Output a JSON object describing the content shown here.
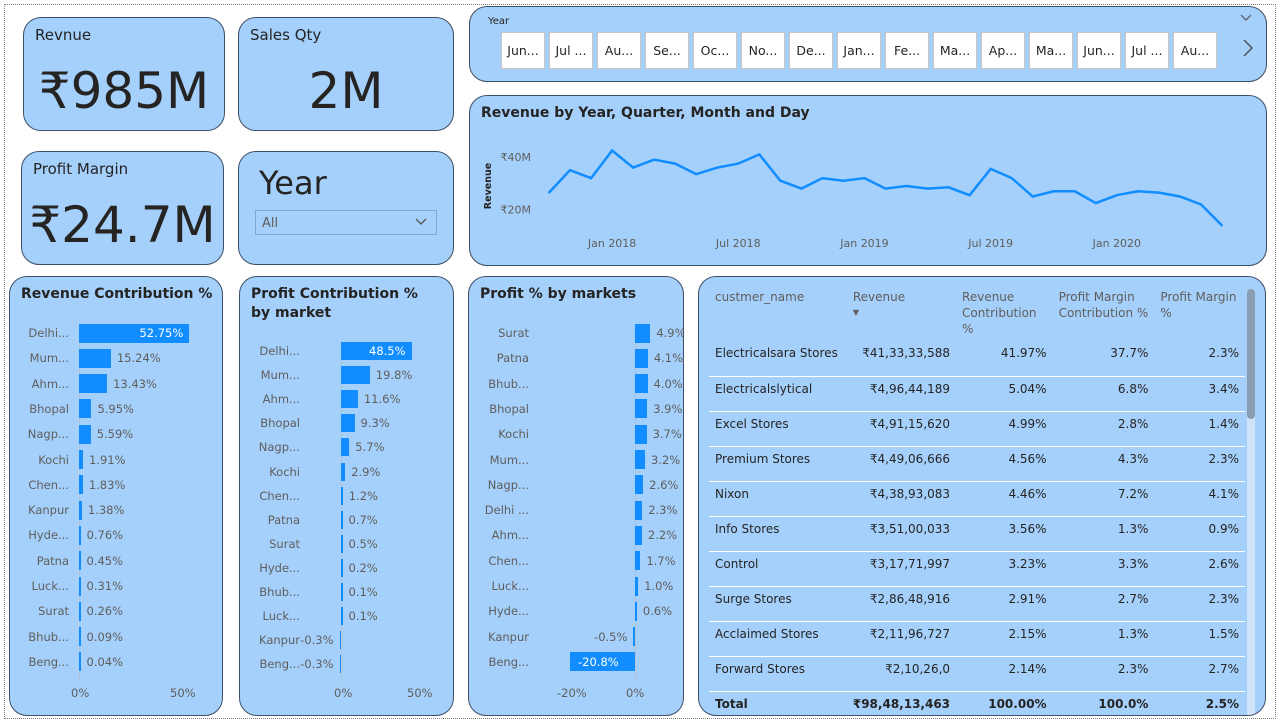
{
  "kpis": {
    "revenue": {
      "label": "Revnue",
      "value": "₹985M"
    },
    "sales_qty": {
      "label": "Sales Qty",
      "value": "2M"
    },
    "profit_margin": {
      "label": "Profit Margin",
      "value": "₹24.7M"
    }
  },
  "year_filter": {
    "title": "Year",
    "selected": "All"
  },
  "year_slicer": {
    "label": "Year",
    "tiles": [
      "Jun...",
      "Jul ...",
      "Au...",
      "Se...",
      "Oc...",
      "No...",
      "De...",
      "Jan...",
      "Fe...",
      "Ma...",
      "Ap...",
      "Ma...",
      "Jun...",
      "Jul ...",
      "Au..."
    ]
  },
  "colors": {
    "card": "#a4d0fb",
    "bar": "#118dff",
    "border": "#3d4f66"
  },
  "icons": {
    "dropdown": "chevron-down-icon",
    "slicer_next": "chevron-right-icon",
    "slicer_collapse": "chevron-down-icon"
  },
  "chart_data": [
    {
      "type": "line",
      "title": "Revenue by Year, Quarter, Month and Day",
      "ylabel": "Revenue",
      "xlabel": "",
      "x_tick_labels": [
        "Jan 2018",
        "Jul 2018",
        "Jan 2019",
        "Jul 2019",
        "Jan 2020"
      ],
      "y_tick_labels": [
        "₹40M",
        "₹20M"
      ],
      "ylim": [
        10,
        48
      ],
      "x": [
        "2017-10",
        "2017-11",
        "2017-12",
        "2018-01",
        "2018-02",
        "2018-03",
        "2018-04",
        "2018-05",
        "2018-06",
        "2018-07",
        "2018-08",
        "2018-09",
        "2018-10",
        "2018-11",
        "2018-12",
        "2019-01",
        "2019-02",
        "2019-03",
        "2019-04",
        "2019-05",
        "2019-06",
        "2019-07",
        "2019-08",
        "2019-09",
        "2019-10",
        "2019-11",
        "2019-12",
        "2020-01",
        "2020-02",
        "2020-03",
        "2020-04",
        "2020-05",
        "2020-06"
      ],
      "series": [
        {
          "values": [
            26.5,
            35,
            32,
            42.5,
            36,
            39,
            37.5,
            33.5,
            36,
            37.5,
            41,
            31,
            28,
            32,
            31,
            32,
            28,
            29,
            28,
            28.5,
            25.5,
            35.5,
            32,
            25,
            27,
            27,
            22.5,
            25.5,
            27,
            26.5,
            25,
            22,
            14
          ]
        }
      ],
      "grid": false
    },
    {
      "type": "bar",
      "orientation": "horizontal",
      "title": "Revenue Contribution %",
      "categories": [
        "Delhi...",
        "Mum...",
        "Ahm...",
        "Bhopal",
        "Nagp...",
        "Kochi",
        "Chen...",
        "Kanpur",
        "Hyde...",
        "Patna",
        "Luck...",
        "Surat",
        "Bhub...",
        "Beng..."
      ],
      "values": [
        52.75,
        15.24,
        13.43,
        5.95,
        5.59,
        1.91,
        1.83,
        1.38,
        0.76,
        0.45,
        0.31,
        0.26,
        0.09,
        0.04
      ],
      "value_labels": [
        "52.75%",
        "15.24%",
        "13.43%",
        "5.95%",
        "5.59%",
        "1.91%",
        "1.83%",
        "1.38%",
        "0.76%",
        "0.45%",
        "0.31%",
        "0.26%",
        "0.09%",
        "0.04%"
      ],
      "xlim": [
        0,
        55
      ],
      "x_tick_labels": [
        "0%",
        "50%"
      ]
    },
    {
      "type": "bar",
      "orientation": "horizontal",
      "title": "Profit Contribution % by market",
      "categories": [
        "Delhi...",
        "Mum...",
        "Ahm...",
        "Bhopal",
        "Nagp...",
        "Kochi",
        "Chen...",
        "Patna",
        "Surat",
        "Hyde...",
        "Bhub...",
        "Luck...",
        "Kanpur",
        "Beng..."
      ],
      "values": [
        48.5,
        19.8,
        11.6,
        9.3,
        5.7,
        2.9,
        1.2,
        0.7,
        0.5,
        0.2,
        0.1,
        0.1,
        -0.3,
        -0.3
      ],
      "value_labels": [
        "48.5%",
        "19.8%",
        "11.6%",
        "9.3%",
        "5.7%",
        "2.9%",
        "1.2%",
        "0.7%",
        "0.5%",
        "0.2%",
        "0.1%",
        "0.1%",
        "-0.3%",
        "-0.3%"
      ],
      "xlim": [
        0,
        55
      ],
      "x_tick_labels": [
        "0%",
        "50%"
      ]
    },
    {
      "type": "bar",
      "orientation": "horizontal",
      "title": "Profit % by markets",
      "categories": [
        "Surat",
        "Patna",
        "Bhub...",
        "Bhopal",
        "Kochi",
        "Mum...",
        "Nagp...",
        "Delhi ...",
        "Ahm...",
        "Chen...",
        "Luck...",
        "Hyde...",
        "Kanpur",
        "Beng..."
      ],
      "values": [
        4.9,
        4.1,
        4.0,
        3.9,
        3.7,
        3.2,
        2.6,
        2.3,
        2.2,
        1.7,
        1.0,
        0.6,
        -0.5,
        -20.8
      ],
      "value_labels": [
        "4.9%",
        "4.1%",
        "4.0%",
        "3.9%",
        "3.7%",
        "3.2%",
        "2.6%",
        "2.3%",
        "2.2%",
        "1.7%",
        "1.0%",
        "0.6%",
        "-0.5%",
        "-20.8%"
      ],
      "xlim": [
        -20.8,
        0
      ],
      "x_tick_labels": [
        "-20%",
        "0%"
      ]
    },
    {
      "type": "table",
      "columns": [
        "custmer_name",
        "Revenue",
        "Revenue Contribution %",
        "Profit Margin Contribution %",
        "Profit Margin %"
      ],
      "rows": [
        [
          "Electricalsara Stores",
          "₹41,33,33,588",
          "41.97%",
          "37.7%",
          "2.3%"
        ],
        [
          "Electricalslytical",
          "₹4,96,44,189",
          "5.04%",
          "6.8%",
          "3.4%"
        ],
        [
          "Excel Stores",
          "₹4,91,15,620",
          "4.99%",
          "2.8%",
          "1.4%"
        ],
        [
          "Premium Stores",
          "₹4,49,06,666",
          "4.56%",
          "4.3%",
          "2.3%"
        ],
        [
          "Nixon",
          "₹4,38,93,083",
          "4.46%",
          "7.2%",
          "4.1%"
        ],
        [
          "Info Stores",
          "₹3,51,00,033",
          "3.56%",
          "1.3%",
          "0.9%"
        ],
        [
          "Control",
          "₹3,17,71,997",
          "3.23%",
          "3.3%",
          "2.6%"
        ],
        [
          "Surge Stores",
          "₹2,86,48,916",
          "2.91%",
          "2.7%",
          "2.3%"
        ],
        [
          "Acclaimed Stores",
          "₹2,11,96,727",
          "2.15%",
          "1.3%",
          "1.5%"
        ],
        [
          "Forward Stores",
          "₹2,10,26,0",
          "2.14%",
          "2.3%",
          "2.7%"
        ]
      ],
      "total": [
        "Total",
        "₹98,48,13,463",
        "100.00%",
        "100.0%",
        "2.5%"
      ]
    }
  ]
}
